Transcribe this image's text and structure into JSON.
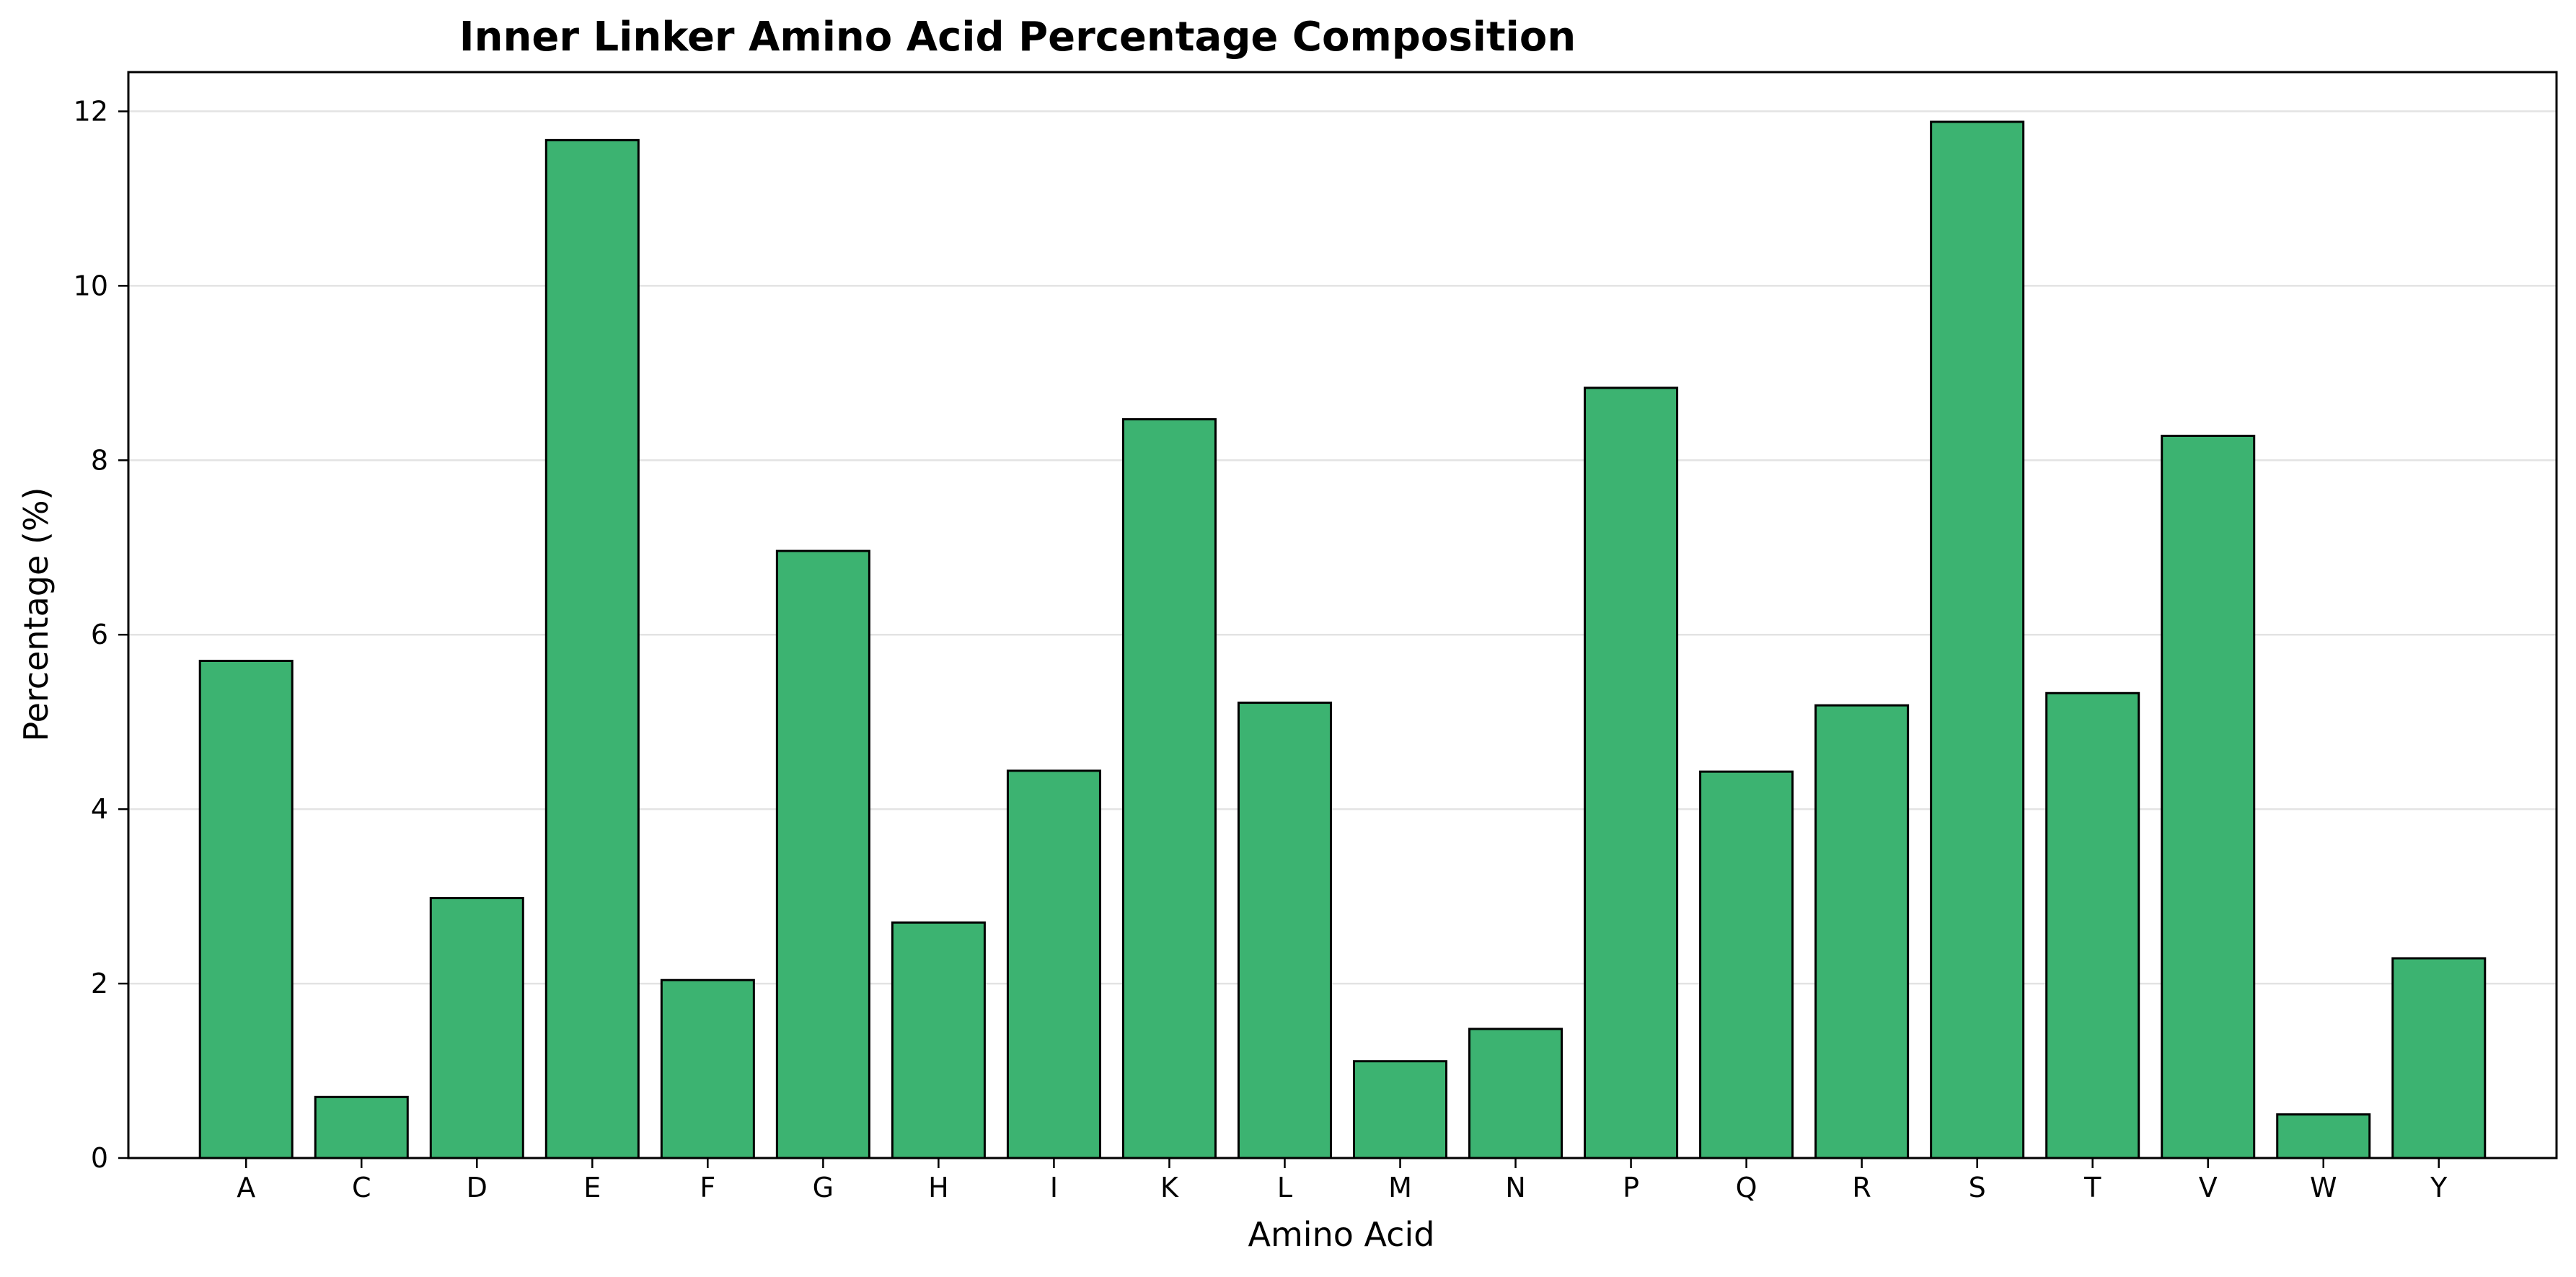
{
  "chart_data": {
    "type": "bar",
    "title": "Inner Linker Amino Acid Percentage Composition",
    "xlabel": "Amino Acid",
    "ylabel": "Percentage (%)",
    "categories": [
      "A",
      "C",
      "D",
      "E",
      "F",
      "G",
      "H",
      "I",
      "K",
      "L",
      "M",
      "N",
      "P",
      "Q",
      "R",
      "S",
      "T",
      "V",
      "W",
      "Y"
    ],
    "values": [
      5.7,
      0.7,
      2.98,
      11.67,
      2.04,
      6.96,
      2.7,
      4.44,
      8.47,
      5.22,
      1.11,
      1.48,
      8.83,
      4.43,
      5.19,
      11.88,
      5.33,
      8.28,
      0.5,
      2.29
    ],
    "ylim": [
      0,
      12.45
    ],
    "yticks": [
      0,
      2,
      4,
      6,
      8,
      10,
      12
    ],
    "grid": "horizontal",
    "bar_color": "#3cb371",
    "edge_color": "#000000"
  }
}
